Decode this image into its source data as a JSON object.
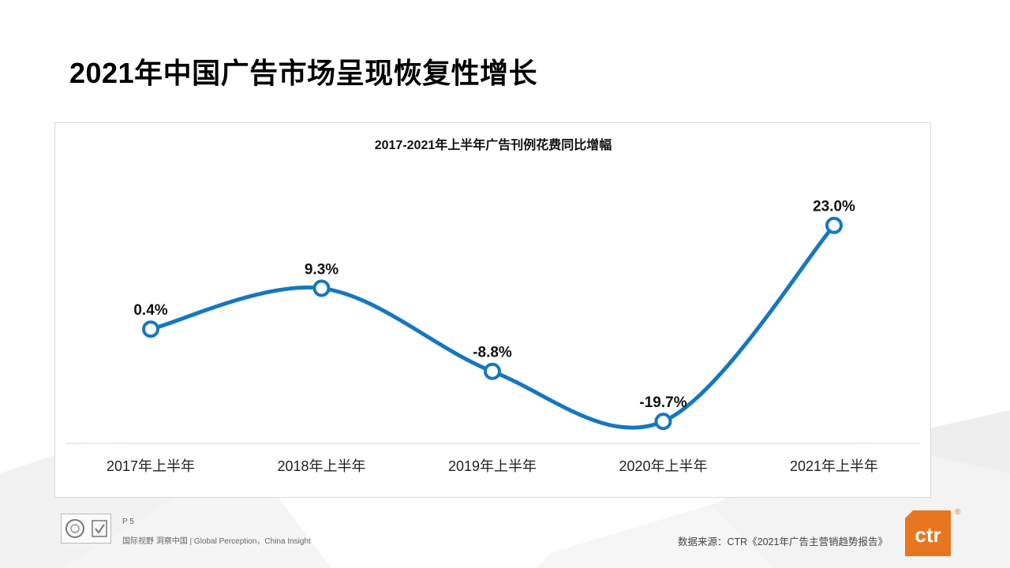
{
  "page": {
    "title": "2021年中国广告市场呈现恢复性增长",
    "page_number": "P 5",
    "slogan": "国际视野  洞察中国 |  Global Perception，China Insight",
    "source": "数据来源：CTR《2021年广告主营销趋势报告》",
    "brand_logo_text": "ctr",
    "brand_reg_mark": "®"
  },
  "colors": {
    "series_line": "#1677c0",
    "brand_orange": "#e8761e"
  },
  "chart_data": {
    "type": "line",
    "title": "2017-2021年上半年广告刊例花费同比增幅",
    "xlabel": "",
    "ylabel": "",
    "categories": [
      "2017年上半年",
      "2018年上半年",
      "2019年上半年",
      "2020年上半年",
      "2021年上半年"
    ],
    "values": [
      0.4,
      9.3,
      -8.8,
      -19.7,
      23.0
    ],
    "labels": [
      "0.4%",
      "9.3%",
      "-8.8%",
      "-19.7%",
      "23.0%"
    ],
    "ylim": [
      -25,
      30
    ],
    "grid": false,
    "smooth": true,
    "marker": "hollow-circle"
  }
}
